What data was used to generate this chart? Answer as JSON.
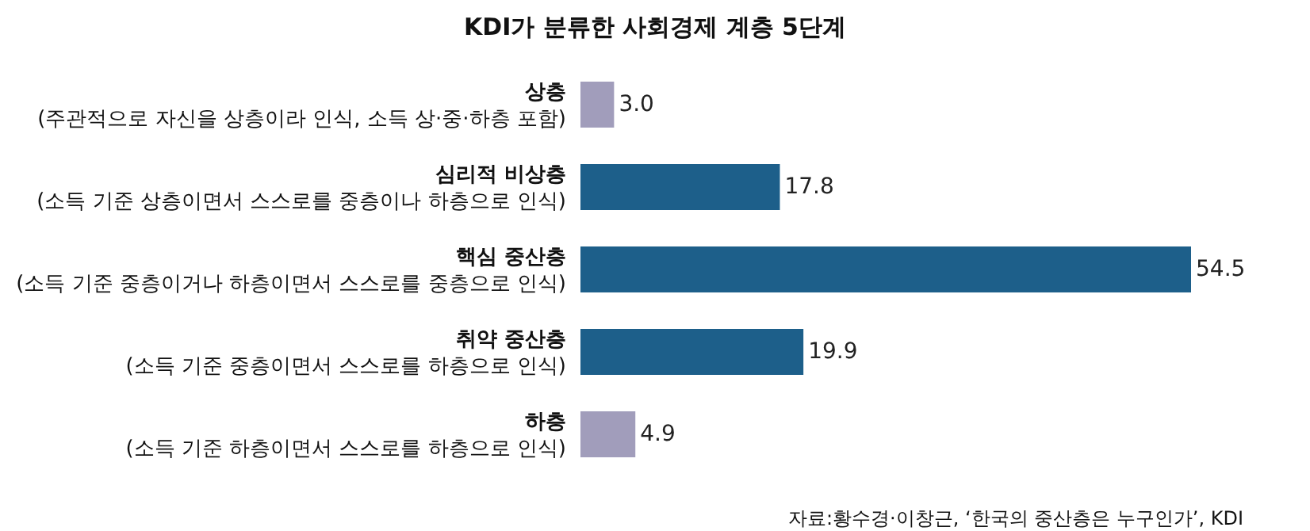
{
  "chart_data": {
    "type": "bar",
    "orientation": "horizontal",
    "title": "KDI가 분류한 사회경제 계층 5단계",
    "categories": [
      "상층\n(주관적으로 자신을 상층이라 인식, 소득 상·중·하층 포함)",
      "심리적 비상층\n(소득 기준 상층이면서 스스로를 중층이나 하층으로 인식)",
      "핵심 중산층\n(소득 기준 중층이거나 하층이면서 스스로를 중층으로 인식)",
      "취약 중산층\n(소득 기준 중층이면서 스스로를 하층으로 인식)",
      "하층\n(소득 기준 하층이면서 스스로를 하층으로 인식)"
    ],
    "values": [
      3.0,
      17.8,
      54.5,
      19.9,
      4.9
    ],
    "value_labels": [
      "3.0",
      "17.8",
      "54.5",
      "19.9",
      "4.9"
    ],
    "colors": [
      "#a19dbb",
      "#1d5f8a",
      "#1d5f8a",
      "#1d5f8a",
      "#a19dbb"
    ],
    "annotations": [
      "자료:황수경·이창근, ‘한국의 중산층은 누구인가’, KDI"
    ]
  }
}
